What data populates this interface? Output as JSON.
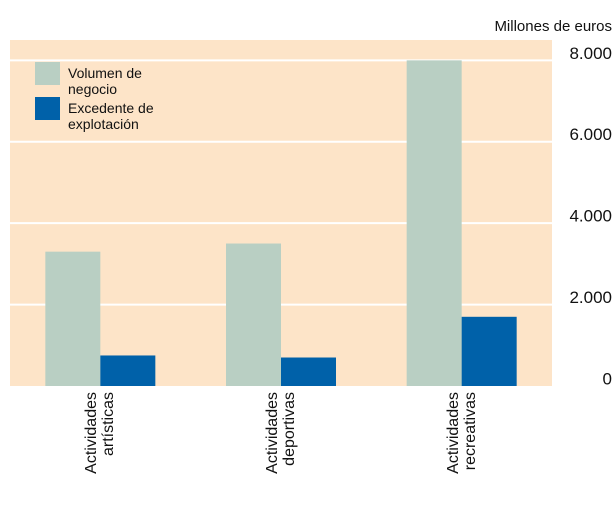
{
  "chart_data": {
    "type": "bar",
    "y_axis_label": "Millones de euros",
    "categories": [
      "Actividades artísticas",
      "Actividades deportivas",
      "Actividades recreativas"
    ],
    "series": [
      {
        "name": "Volumen de negocio",
        "color": "#b9cfc3",
        "values": [
          3300,
          3500,
          8000
        ]
      },
      {
        "name": "Excedente de explotación",
        "color": "#0061a9",
        "values": [
          750,
          700,
          1700
        ]
      }
    ],
    "ylim": [
      0,
      8500
    ],
    "yticks": [
      0,
      {
        "value": 2000,
        "label": "2.000"
      },
      {
        "value": 4000,
        "label": "4.000"
      },
      {
        "value": 6000,
        "label": "6.000"
      },
      {
        "value": 8000,
        "label": "8.000"
      }
    ],
    "grid": true,
    "legend": "top-left",
    "background": "#fde4c8"
  }
}
